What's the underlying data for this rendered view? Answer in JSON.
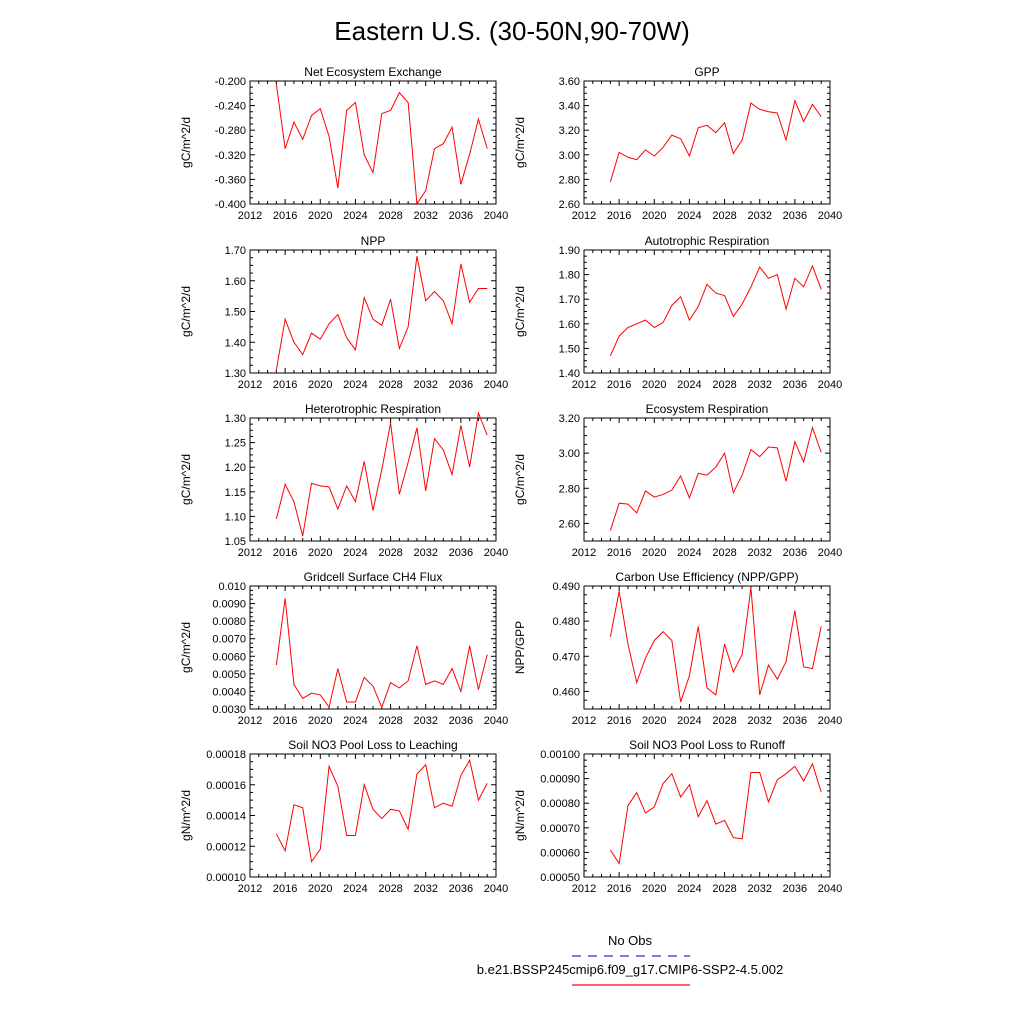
{
  "title": "Eastern U.S. (30-50N,90-70W)",
  "legend": {
    "obs_label": "No Obs",
    "obs_color": "#3333cc",
    "model_label": "b.e21.BSSP245cmip6.f09_g17.CMIP6-SSP2-4.5.002",
    "model_color": "#ff0000"
  },
  "chart_data": [
    {
      "type": "line",
      "title": "Net Ecosystem Exchange",
      "ylabel": "gC/m^2/d",
      "xlim": [
        2012,
        2040
      ],
      "ylim": [
        -0.4,
        -0.2
      ],
      "xticks": [
        "2012",
        "2016",
        "2020",
        "2024",
        "2028",
        "2032",
        "2036",
        "2040"
      ],
      "yticks": [
        "-0.400",
        "-0.360",
        "-0.320",
        "-0.280",
        "-0.240",
        "-0.200"
      ],
      "x": [
        2015,
        2016,
        2017,
        2018,
        2019,
        2020,
        2021,
        2022,
        2023,
        2024,
        2025,
        2026,
        2027,
        2028,
        2029,
        2030,
        2031,
        2032,
        2033,
        2034,
        2035,
        2036,
        2037,
        2038,
        2039
      ],
      "series": [
        {
          "values": [
            -0.205,
            -0.31,
            -0.267,
            -0.295,
            -0.256,
            -0.245,
            -0.29,
            -0.374,
            -0.248,
            -0.235,
            -0.32,
            -0.349,
            -0.253,
            -0.248,
            -0.219,
            -0.235,
            -0.4,
            -0.378,
            -0.31,
            -0.302,
            -0.275,
            -0.368,
            -0.319,
            -0.262,
            -0.31
          ]
        }
      ]
    },
    {
      "type": "line",
      "title": "GPP",
      "ylabel": "gC/m^2/d",
      "xlim": [
        2012,
        2040
      ],
      "ylim": [
        2.6,
        3.6
      ],
      "xticks": [
        "2012",
        "2016",
        "2020",
        "2024",
        "2028",
        "2032",
        "2036",
        "2040"
      ],
      "yticks": [
        "2.60",
        "2.80",
        "3.00",
        "3.20",
        "3.40",
        "3.60"
      ],
      "x": [
        2015,
        2016,
        2017,
        2018,
        2019,
        2020,
        2021,
        2022,
        2023,
        2024,
        2025,
        2026,
        2027,
        2028,
        2029,
        2030,
        2031,
        2032,
        2033,
        2034,
        2035,
        2036,
        2037,
        2038,
        2039
      ],
      "series": [
        {
          "values": [
            2.78,
            3.02,
            2.98,
            2.96,
            3.04,
            2.99,
            3.06,
            3.16,
            3.13,
            2.99,
            3.22,
            3.24,
            3.18,
            3.26,
            3.01,
            3.12,
            3.42,
            3.37,
            3.35,
            3.34,
            3.12,
            3.44,
            3.27,
            3.41,
            3.31
          ]
        }
      ]
    },
    {
      "type": "line",
      "title": "NPP",
      "ylabel": "gC/m^2/d",
      "xlim": [
        2012,
        2040
      ],
      "ylim": [
        1.3,
        1.7
      ],
      "xticks": [
        "2012",
        "2016",
        "2020",
        "2024",
        "2028",
        "2032",
        "2036",
        "2040"
      ],
      "yticks": [
        "1.30",
        "1.40",
        "1.50",
        "1.60",
        "1.70"
      ],
      "x": [
        2015,
        2016,
        2017,
        2018,
        2019,
        2020,
        2021,
        2022,
        2023,
        2024,
        2025,
        2026,
        2027,
        2028,
        2029,
        2030,
        2031,
        2032,
        2033,
        2034,
        2035,
        2036,
        2037,
        2038,
        2039
      ],
      "series": [
        {
          "values": [
            1.31,
            1.475,
            1.4,
            1.36,
            1.43,
            1.41,
            1.46,
            1.49,
            1.415,
            1.375,
            1.545,
            1.475,
            1.455,
            1.54,
            1.38,
            1.45,
            1.68,
            1.535,
            1.565,
            1.535,
            1.46,
            1.655,
            1.53,
            1.575,
            1.575
          ]
        }
      ]
    },
    {
      "type": "line",
      "title": "Autotrophic Respiration",
      "ylabel": "gC/m^2/d",
      "xlim": [
        2012,
        2040
      ],
      "ylim": [
        1.4,
        1.9
      ],
      "xticks": [
        "2012",
        "2016",
        "2020",
        "2024",
        "2028",
        "2032",
        "2036",
        "2040"
      ],
      "yticks": [
        "1.40",
        "1.50",
        "1.60",
        "1.70",
        "1.80",
        "1.90"
      ],
      "x": [
        2015,
        2016,
        2017,
        2018,
        2019,
        2020,
        2021,
        2022,
        2023,
        2024,
        2025,
        2026,
        2027,
        2028,
        2029,
        2030,
        2031,
        2032,
        2033,
        2034,
        2035,
        2036,
        2037,
        2038,
        2039
      ],
      "series": [
        {
          "values": [
            1.47,
            1.55,
            1.585,
            1.6,
            1.615,
            1.585,
            1.605,
            1.675,
            1.71,
            1.615,
            1.67,
            1.76,
            1.725,
            1.715,
            1.63,
            1.68,
            1.75,
            1.83,
            1.785,
            1.8,
            1.66,
            1.785,
            1.75,
            1.835,
            1.74
          ]
        }
      ]
    },
    {
      "type": "line",
      "title": "Heterotrophic Respiration",
      "ylabel": "gC/m^2/d",
      "xlim": [
        2012,
        2040
      ],
      "ylim": [
        1.05,
        1.3
      ],
      "xticks": [
        "2012",
        "2016",
        "2020",
        "2024",
        "2028",
        "2032",
        "2036",
        "2040"
      ],
      "yticks": [
        "1.05",
        "1.10",
        "1.15",
        "1.20",
        "1.25",
        "1.30"
      ],
      "x": [
        2015,
        2016,
        2017,
        2018,
        2019,
        2020,
        2021,
        2022,
        2023,
        2024,
        2025,
        2026,
        2027,
        2028,
        2029,
        2030,
        2031,
        2032,
        2033,
        2034,
        2035,
        2036,
        2037,
        2038,
        2039
      ],
      "series": [
        {
          "values": [
            1.095,
            1.165,
            1.13,
            1.06,
            1.167,
            1.162,
            1.16,
            1.115,
            1.162,
            1.13,
            1.212,
            1.112,
            1.195,
            1.29,
            1.145,
            1.21,
            1.28,
            1.152,
            1.258,
            1.235,
            1.185,
            1.285,
            1.2,
            1.31,
            1.265
          ]
        }
      ]
    },
    {
      "type": "line",
      "title": "Ecosystem Respiration",
      "ylabel": "gC/m^2/d",
      "xlim": [
        2012,
        2040
      ],
      "ylim": [
        2.5,
        3.2
      ],
      "xticks": [
        "2012",
        "2016",
        "2020",
        "2024",
        "2028",
        "2032",
        "2036",
        "2040"
      ],
      "yticks": [
        "2.60",
        "2.80",
        "3.00",
        "3.20"
      ],
      "x": [
        2015,
        2016,
        2017,
        2018,
        2019,
        2020,
        2021,
        2022,
        2023,
        2024,
        2025,
        2026,
        2027,
        2028,
        2029,
        2030,
        2031,
        2032,
        2033,
        2034,
        2035,
        2036,
        2037,
        2038,
        2039
      ],
      "series": [
        {
          "values": [
            2.56,
            2.715,
            2.71,
            2.66,
            2.785,
            2.75,
            2.765,
            2.79,
            2.87,
            2.745,
            2.885,
            2.875,
            2.92,
            3.0,
            2.775,
            2.875,
            3.02,
            2.98,
            3.035,
            3.03,
            2.84,
            3.065,
            2.95,
            3.145,
            3.005
          ]
        }
      ]
    },
    {
      "type": "line",
      "title": "Gridcell Surface CH4 Flux",
      "ylabel": "gC/m^2/d",
      "xlim": [
        2012,
        2040
      ],
      "ylim": [
        0.003,
        0.01
      ],
      "xticks": [
        "2012",
        "2016",
        "2020",
        "2024",
        "2028",
        "2032",
        "2036",
        "2040"
      ],
      "yticks": [
        "0.0030",
        "0.0040",
        "0.0050",
        "0.0060",
        "0.0070",
        "0.0080",
        "0.0090",
        "0.010"
      ],
      "x": [
        2015,
        2016,
        2017,
        2018,
        2019,
        2020,
        2021,
        2022,
        2023,
        2024,
        2025,
        2026,
        2027,
        2028,
        2029,
        2030,
        2031,
        2032,
        2033,
        2034,
        2035,
        2036,
        2037,
        2038,
        2039
      ],
      "series": [
        {
          "values": [
            0.0055,
            0.0093,
            0.0044,
            0.0036,
            0.0039,
            0.0038,
            0.0031,
            0.0053,
            0.0034,
            0.0034,
            0.0048,
            0.0043,
            0.0031,
            0.0045,
            0.0042,
            0.0046,
            0.0066,
            0.0044,
            0.0046,
            0.0044,
            0.0053,
            0.004,
            0.0066,
            0.0041,
            0.0061
          ]
        }
      ]
    },
    {
      "type": "line",
      "title": "Carbon Use Efficiency (NPP/GPP)",
      "ylabel": "NPP/GPP",
      "xlim": [
        2012,
        2040
      ],
      "ylim": [
        0.455,
        0.49
      ],
      "xticks": [
        "2012",
        "2016",
        "2020",
        "2024",
        "2028",
        "2032",
        "2036",
        "2040"
      ],
      "yticks": [
        "0.460",
        "0.470",
        "0.480",
        "0.490"
      ],
      "x": [
        2015,
        2016,
        2017,
        2018,
        2019,
        2020,
        2021,
        2022,
        2023,
        2024,
        2025,
        2026,
        2027,
        2028,
        2029,
        2030,
        2031,
        2032,
        2033,
        2034,
        2035,
        2036,
        2037,
        2038,
        2039
      ],
      "series": [
        {
          "values": [
            0.4755,
            0.4885,
            0.4735,
            0.4625,
            0.4695,
            0.4745,
            0.477,
            0.4745,
            0.457,
            0.4645,
            0.4785,
            0.461,
            0.459,
            0.4735,
            0.4655,
            0.4705,
            0.4895,
            0.459,
            0.4675,
            0.4635,
            0.4685,
            0.483,
            0.467,
            0.4665,
            0.4785
          ]
        }
      ]
    },
    {
      "type": "line",
      "title": "Soil NO3 Pool Loss to Leaching",
      "ylabel": "gN/m^2/d",
      "xlim": [
        2012,
        2040
      ],
      "ylim": [
        0.0001,
        0.00018
      ],
      "xticks": [
        "2012",
        "2016",
        "2020",
        "2024",
        "2028",
        "2032",
        "2036",
        "2040"
      ],
      "yticks": [
        "0.00010",
        "0.00012",
        "0.00014",
        "0.00016",
        "0.00018"
      ],
      "x": [
        2015,
        2016,
        2017,
        2018,
        2019,
        2020,
        2021,
        2022,
        2023,
        2024,
        2025,
        2026,
        2027,
        2028,
        2029,
        2030,
        2031,
        2032,
        2033,
        2034,
        2035,
        2036,
        2037,
        2038,
        2039
      ],
      "series": [
        {
          "values": [
            0.000128,
            0.000117,
            0.000147,
            0.000145,
            0.00011,
            0.000118,
            0.000172,
            0.000159,
            0.000127,
            0.000127,
            0.00016,
            0.000144,
            0.000138,
            0.000144,
            0.000143,
            0.000131,
            0.000167,
            0.000173,
            0.000145,
            0.000148,
            0.000146,
            0.000166,
            0.000176,
            0.00015,
            0.000161
          ]
        }
      ]
    },
    {
      "type": "line",
      "title": "Soil NO3 Pool Loss to Runoff",
      "ylabel": "gN/m^2/d",
      "xlim": [
        2012,
        2040
      ],
      "ylim": [
        0.0005,
        0.001
      ],
      "xticks": [
        "2012",
        "2016",
        "2020",
        "2024",
        "2028",
        "2032",
        "2036",
        "2040"
      ],
      "yticks": [
        "0.00050",
        "0.00060",
        "0.00070",
        "0.00080",
        "0.00090",
        "0.00100"
      ],
      "x": [
        2015,
        2016,
        2017,
        2018,
        2019,
        2020,
        2021,
        2022,
        2023,
        2024,
        2025,
        2026,
        2027,
        2028,
        2029,
        2030,
        2031,
        2032,
        2033,
        2034,
        2035,
        2036,
        2037,
        2038,
        2039
      ],
      "series": [
        {
          "values": [
            0.00061,
            0.000555,
            0.00079,
            0.000843,
            0.00076,
            0.000785,
            0.00088,
            0.00092,
            0.000825,
            0.000875,
            0.000745,
            0.00081,
            0.000715,
            0.00073,
            0.00066,
            0.000655,
            0.000925,
            0.000925,
            0.000805,
            0.000895,
            0.00092,
            0.00095,
            0.00089,
            0.00096,
            0.000845
          ]
        }
      ]
    }
  ]
}
